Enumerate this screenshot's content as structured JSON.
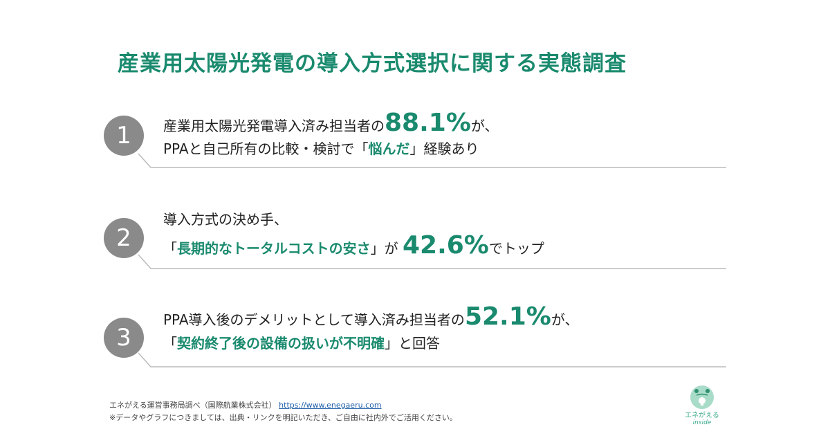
{
  "title": "産業用太陽光発電の導入方式選択に関する実態調査",
  "items": [
    {
      "number": "1",
      "line1_pre": "産業用太陽光発電導入済み担当者の",
      "line1_big": "88.1%",
      "line1_post": "が、",
      "line2_pre": "PPAと自己所有の比較・検討で「",
      "line2_hl": "悩んだ",
      "line2_post": "」経験あり"
    },
    {
      "number": "2",
      "line1_pre": "導入方式の決め手、",
      "line2_pre": "「",
      "line2_hl": "長期的なトータルコストの安さ",
      "line2_mid": "」が ",
      "line2_big": "42.6%",
      "line2_post": "でトップ"
    },
    {
      "number": "3",
      "line1_pre": "PPA導入後のデメリットとして導入済み担当者の",
      "line1_big": "52.1%",
      "line1_post": "が、",
      "line2_pre": "「",
      "line2_hl": "契約終了後の設備の扱いが不明確",
      "line2_post": "」と回答"
    }
  ],
  "footer": {
    "source": "エネがえる運営事務局調べ（国際航業株式会社）",
    "link": "https://www.enegaeru.com",
    "note": "※データやグラフにつきましては、出典・リンクを明記いただき、ご自由に社内外でご活用ください。"
  },
  "logo": {
    "name": "エネがえる",
    "sub": "inside"
  },
  "colors": {
    "accent": "#1a8a6e",
    "circle": "#8a8a8a"
  }
}
